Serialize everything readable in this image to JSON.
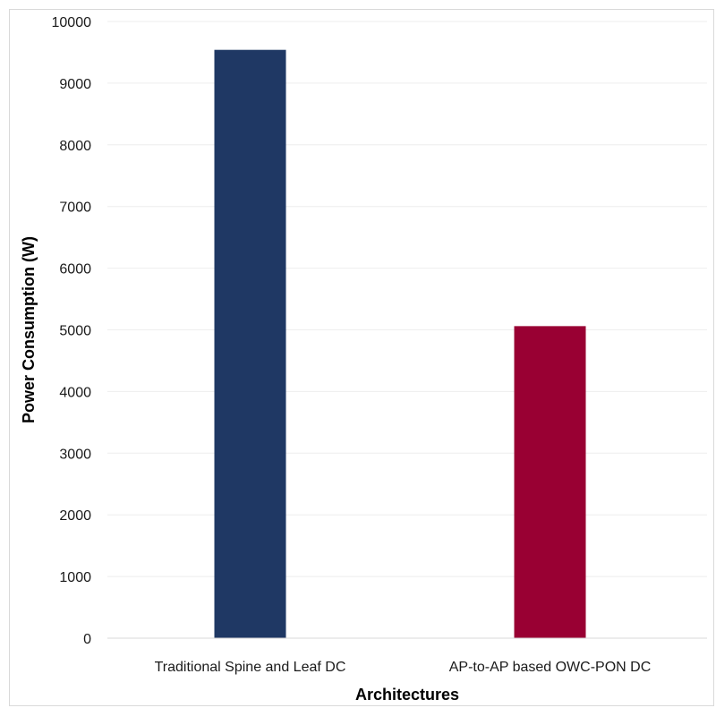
{
  "chart_data": {
    "type": "bar",
    "categories": [
      "Traditional Spine and Leaf DC",
      "AP-to-AP based OWC-PON DC"
    ],
    "values": [
      9540,
      5060
    ],
    "colors": [
      "#1f3864",
      "#990033"
    ],
    "xlabel": "Architectures",
    "ylabel": "Power Consumption  (W)",
    "ylim": [
      0,
      10000
    ],
    "yticks": [
      0,
      1000,
      2000,
      3000,
      4000,
      5000,
      6000,
      7000,
      8000,
      9000,
      10000
    ],
    "grid": true,
    "legend": "none"
  }
}
